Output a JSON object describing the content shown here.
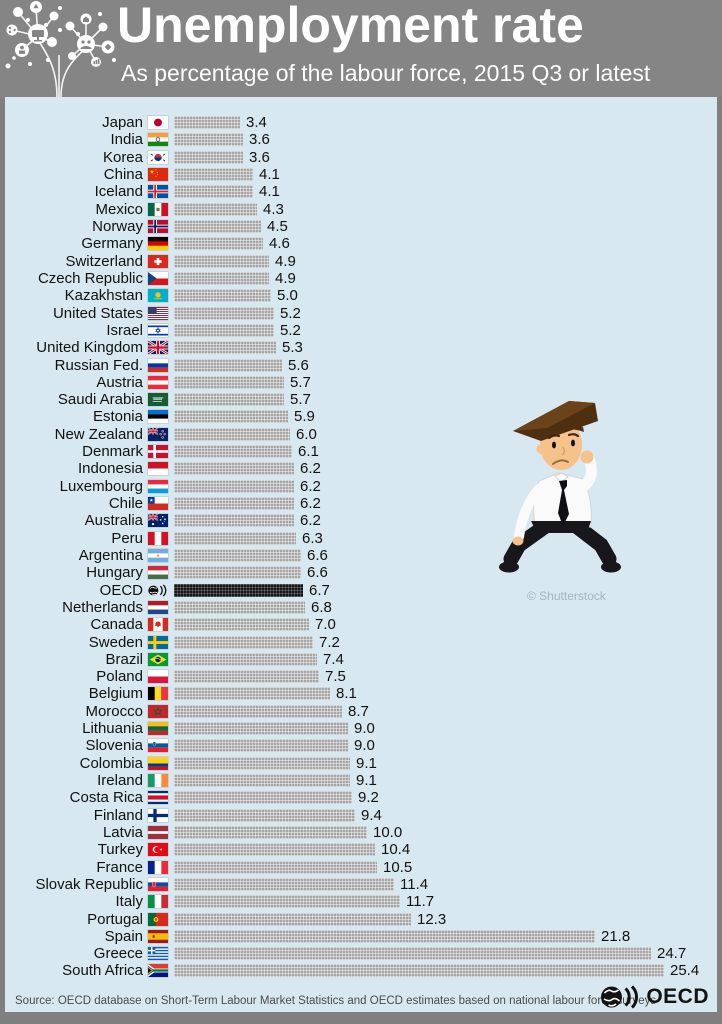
{
  "header": {
    "title": "Unemployment rate",
    "subtitle": "As percentage of the labour force, 2015 Q3 or latest",
    "logo_icon": "network-tree-icon"
  },
  "chart_data": {
    "type": "bar",
    "orientation": "horizontal",
    "title": "Unemployment rate",
    "subtitle": "As percentage of the labour force, 2015 Q3 or latest",
    "unit": "% of labour force",
    "xlim": [
      0,
      27
    ],
    "grid": false,
    "value_labels": true,
    "value_label_decimals": 1,
    "highlight_category": "OECD",
    "bar_color": "#a6a6a6",
    "highlight_color": "#151515",
    "background": "#d8e8f0",
    "categories": [
      "Japan",
      "India",
      "Korea",
      "China",
      "Iceland",
      "Mexico",
      "Norway",
      "Germany",
      "Switzerland",
      "Czech Republic",
      "Kazakhstan",
      "United States",
      "Israel",
      "United Kingdom",
      "Russian Fed.",
      "Austria",
      "Saudi Arabia",
      "Estonia",
      "New Zealand",
      "Denmark",
      "Indonesia",
      "Luxembourg",
      "Chile",
      "Australia",
      "Peru",
      "Argentina",
      "Hungary",
      "OECD",
      "Netherlands",
      "Canada",
      "Sweden",
      "Brazil",
      "Poland",
      "Belgium",
      "Morocco",
      "Lithuania",
      "Slovenia",
      "Colombia",
      "Ireland",
      "Costa Rica",
      "Finland",
      "Latvia",
      "Turkey",
      "France",
      "Slovak Republic",
      "Italy",
      "Portugal",
      "Spain",
      "Greece",
      "South Africa"
    ],
    "values": [
      3.4,
      3.6,
      3.6,
      4.1,
      4.1,
      4.3,
      4.5,
      4.6,
      4.9,
      4.9,
      5.0,
      5.2,
      5.2,
      5.3,
      5.6,
      5.7,
      5.7,
      5.9,
      6.0,
      6.1,
      6.2,
      6.2,
      6.2,
      6.2,
      6.3,
      6.6,
      6.6,
      6.7,
      6.8,
      7.0,
      7.2,
      7.4,
      7.5,
      8.1,
      8.7,
      9.0,
      9.0,
      9.1,
      9.1,
      9.2,
      9.4,
      10.0,
      10.4,
      10.5,
      11.4,
      11.7,
      12.3,
      21.8,
      24.7,
      25.4
    ],
    "flags": [
      "jp",
      "in",
      "kr",
      "cn",
      "is",
      "mx",
      "no",
      "de",
      "ch",
      "cz",
      "kz",
      "us",
      "il",
      "gb",
      "ru",
      "at",
      "sa",
      "ee",
      "nz",
      "dk",
      "id",
      "lu",
      "cl",
      "au",
      "pe",
      "ar",
      "hu",
      "oecd",
      "nl",
      "ca",
      "se",
      "br",
      "pl",
      "be",
      "ma",
      "lt",
      "si",
      "co",
      "ie",
      "cr",
      "fi",
      "lv",
      "tr",
      "fr",
      "sk",
      "it",
      "pt",
      "es",
      "gr",
      "za"
    ]
  },
  "illustration": {
    "name": "sad-unemployed-man-cartoon",
    "watermark": "© Shutterstock"
  },
  "footer": {
    "source": "Source: OECD database on Short-Term Labour Market Statistics and OECD estimates based on national labour force surveys",
    "brand": "OECD",
    "brand_icon": "oecd-globe-icon"
  },
  "colors": {
    "header_bg": "#858585",
    "panel_bg": "#d8e8f0",
    "bar": "#a6a6a6",
    "bar_highlight": "#151515",
    "text": "#111111"
  }
}
